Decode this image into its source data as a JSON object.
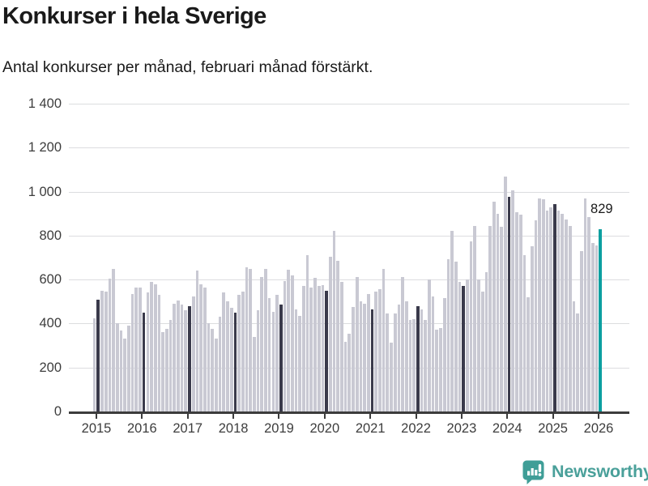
{
  "header": {
    "title": "Konkurser i hela Sverige",
    "subtitle": "Antal konkurser per månad, februari månad förstärkt."
  },
  "annotation": {
    "latest_value_label": "829"
  },
  "branding": {
    "wordmark": "Newsworthy",
    "icon": "newsworthy-speech-bubble-chart-icon"
  },
  "colors": {
    "bar_default": "#c9c9d3",
    "bar_february": "#3a3a4b",
    "bar_latest": "#0c9fa0",
    "gridline": "#dcdddf",
    "axis": "#3c3c3c",
    "text": "#1a1a1a",
    "brand_teal": "#4aa09a"
  },
  "chart_data": {
    "type": "bar",
    "title": "Konkurser i hela Sverige",
    "subtitle": "Antal konkurser per månad, februari månad förstärkt.",
    "xlabel": "",
    "ylabel": "",
    "x_start": "2015-01",
    "x_end": "2026-02",
    "ylim": [
      0,
      1400
    ],
    "grid": true,
    "legend": false,
    "ytick_labels": [
      "0",
      "200",
      "400",
      "600",
      "800",
      "1 000",
      "1 200",
      "1 400"
    ],
    "ytick_values": [
      0,
      200,
      400,
      600,
      800,
      1000,
      1200,
      1400
    ],
    "xtick_labels": [
      "2015",
      "2016",
      "2017",
      "2018",
      "2019",
      "2020",
      "2021",
      "2022",
      "2023",
      "2024",
      "2025",
      "2026"
    ],
    "emphasis": "february bars are dark; latest bar (2026-02) is teal and labeled 829",
    "series": [
      {
        "year": 2015,
        "values": [
          425,
          510,
          550,
          545,
          605,
          650,
          400,
          370,
          330,
          390,
          535,
          565
        ]
      },
      {
        "year": 2016,
        "values": [
          565,
          450,
          540,
          590,
          580,
          530,
          360,
          375,
          415,
          490,
          505,
          485
        ]
      },
      {
        "year": 2017,
        "values": [
          460,
          480,
          525,
          640,
          580,
          565,
          400,
          375,
          330,
          430,
          540,
          500
        ]
      },
      {
        "year": 2018,
        "values": [
          470,
          450,
          530,
          545,
          655,
          650,
          340,
          460,
          610,
          650,
          515,
          455
        ]
      },
      {
        "year": 2019,
        "values": [
          530,
          485,
          592,
          646,
          618,
          465,
          435,
          570,
          710,
          565,
          607,
          572
        ]
      },
      {
        "year": 2020,
        "values": [
          575,
          548,
          705,
          820,
          685,
          590,
          317,
          355,
          476,
          611,
          501,
          490
        ]
      },
      {
        "year": 2021,
        "values": [
          533,
          465,
          545,
          555,
          650,
          445,
          312,
          445,
          485,
          613,
          500,
          416
        ]
      },
      {
        "year": 2022,
        "values": [
          420,
          480,
          465,
          415,
          600,
          525,
          372,
          380,
          515,
          692,
          820,
          680
        ]
      },
      {
        "year": 2023,
        "values": [
          590,
          572,
          600,
          775,
          845,
          600,
          545,
          635,
          845,
          955,
          900,
          840
        ]
      },
      {
        "year": 2024,
        "values": [
          1070,
          975,
          1005,
          905,
          895,
          710,
          520,
          750,
          870,
          970,
          965,
          915
        ]
      },
      {
        "year": 2025,
        "values": [
          930,
          945,
          915,
          900,
          875,
          845,
          500,
          445,
          730,
          970,
          885,
          765
        ]
      },
      {
        "year": 2026,
        "values": [
          755,
          829
        ]
      }
    ],
    "highlight": {
      "month": "2026-02",
      "value": 829
    }
  }
}
